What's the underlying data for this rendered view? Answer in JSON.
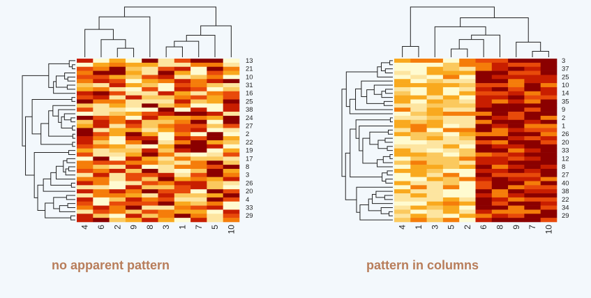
{
  "captions": {
    "left": "no apparent pattern",
    "right": "pattern in columns",
    "color": "#b87d5a"
  },
  "palette": [
    "#8b0000",
    "#c81e00",
    "#e84a0a",
    "#f57d0a",
    "#f9a91e",
    "#fbc95e",
    "#fde5a0",
    "#fffbd0"
  ],
  "chart_data": [
    {
      "type": "heatmap",
      "name": "",
      "title": "",
      "column_labels": [
        "4",
        "6",
        "2",
        "9",
        "8",
        "3",
        "1",
        "7",
        "5",
        "10"
      ],
      "row_labels_shown": [
        "13",
        "21",
        "10",
        "31",
        "16",
        "25",
        "38",
        "24",
        "27",
        "2",
        "22",
        "19",
        "17",
        "8",
        "3",
        "26",
        "20",
        "4",
        "33",
        "29"
      ],
      "row_count": 40,
      "dendrograms": [
        "top",
        "left"
      ],
      "pattern": "random"
    },
    {
      "type": "heatmap",
      "name": "",
      "title": "",
      "column_labels": [
        "4",
        "1",
        "3",
        "5",
        "2",
        "6",
        "8",
        "9",
        "7",
        "10"
      ],
      "row_labels_shown": [
        "3",
        "37",
        "25",
        "10",
        "14",
        "35",
        "9",
        "2",
        "1",
        "26",
        "20",
        "33",
        "12",
        "8",
        "27",
        "40",
        "38",
        "22",
        "34",
        "29"
      ],
      "row_count": 40,
      "dendrograms": [
        "top",
        "left"
      ],
      "pattern": "columns"
    }
  ]
}
